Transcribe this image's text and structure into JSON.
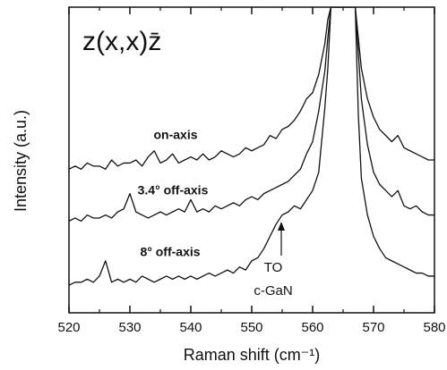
{
  "chart_data": {
    "type": "line",
    "title": "z(x,x)z̄",
    "xlabel": "Raman shift (cm⁻¹)",
    "ylabel": "Intensity (a.u.)",
    "annotation": [
      "TO",
      "c-GaN"
    ],
    "x": [
      520,
      521,
      522,
      523,
      524,
      525,
      526,
      527,
      528,
      529,
      530,
      531,
      532,
      533,
      534,
      535,
      536,
      537,
      538,
      539,
      540,
      541,
      542,
      543,
      544,
      545,
      546,
      547,
      548,
      549,
      550,
      551,
      552,
      553,
      554,
      555,
      556,
      557,
      558,
      559,
      560,
      561,
      562,
      562.5,
      563,
      567,
      567.5,
      568,
      569,
      570,
      571,
      572,
      573,
      574,
      575,
      576,
      577,
      578,
      579,
      580
    ],
    "series": [
      {
        "name": "on-axis",
        "color": "#111111",
        "values": [
          47,
          48,
          47,
          49,
          48,
          48,
          47,
          50,
          48,
          49,
          49,
          50,
          48,
          51,
          53,
          49,
          50,
          52,
          49,
          50,
          51,
          50,
          52,
          50,
          51,
          53,
          52,
          51,
          52,
          54,
          53,
          54,
          55,
          58,
          57,
          60,
          61,
          63,
          66,
          70,
          72,
          78,
          88,
          96,
          100,
          100,
          90,
          80,
          70,
          64,
          60,
          58,
          56,
          58,
          54,
          53,
          52,
          51,
          50,
          50
        ]
      },
      {
        "name": "3.4° off-axis",
        "color": "#111111",
        "values": [
          30,
          31,
          30,
          32,
          31,
          31,
          32,
          31,
          33,
          34,
          39,
          33,
          32,
          31,
          32,
          33,
          32,
          33,
          34,
          33,
          37,
          33,
          34,
          33,
          35,
          34,
          35,
          36,
          35,
          37,
          38,
          37,
          39,
          40,
          41,
          42,
          43,
          45,
          47,
          52,
          56,
          66,
          79,
          90,
          100,
          100,
          85,
          70,
          55,
          46,
          42,
          40,
          38,
          40,
          35,
          34,
          35,
          33,
          32,
          32
        ]
      },
      {
        "name": "8° off-axis",
        "color": "#111111",
        "values": [
          9,
          10,
          10,
          11,
          10,
          12,
          17,
          10,
          11,
          10,
          11,
          10,
          12,
          11,
          10,
          11,
          12,
          11,
          12,
          11,
          12,
          11,
          12,
          13,
          12,
          13,
          14,
          13,
          15,
          14,
          17,
          18,
          21,
          25,
          29,
          32,
          33,
          35,
          34,
          37,
          40,
          46,
          67,
          80,
          100,
          100,
          65,
          44,
          32,
          25,
          21,
          18,
          17,
          16,
          15,
          14,
          13,
          13,
          12,
          12
        ]
      }
    ],
    "xlim": [
      520,
      580
    ],
    "xticks": [
      520,
      530,
      540,
      550,
      560,
      570,
      580
    ],
    "xminorticks": [
      525,
      535,
      545,
      555,
      565,
      575
    ],
    "ylim": [
      0,
      100
    ]
  }
}
